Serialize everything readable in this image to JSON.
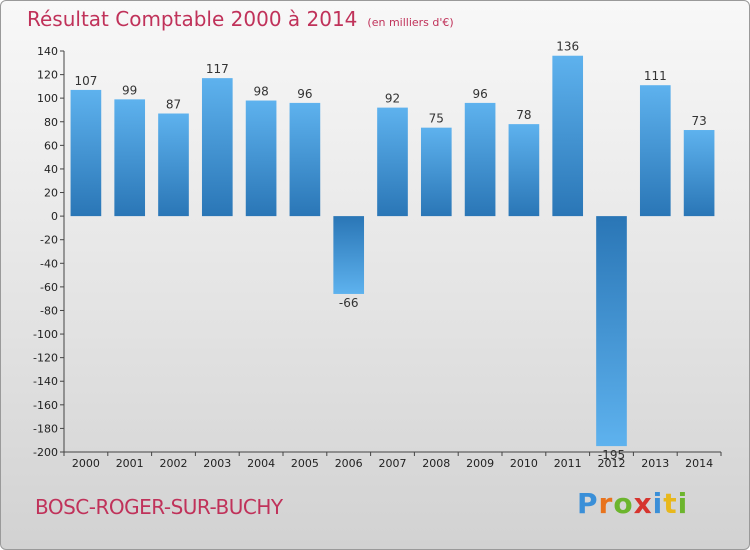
{
  "header": {
    "title": "Résultat Comptable 2000 à 2014",
    "subtitle": "(en milliers d'€)"
  },
  "footer": {
    "municipality": "BOSC-ROGER-SUR-BUCHY",
    "brand": "Proxiti"
  },
  "brand_letters": [
    {
      "ch": "P",
      "color": "#3a8fd8"
    },
    {
      "ch": "r",
      "color": "#e8731c"
    },
    {
      "ch": "o",
      "color": "#6cb52d"
    },
    {
      "ch": "x",
      "color": "#d6342e"
    },
    {
      "ch": "i",
      "color": "#3a8fd8"
    },
    {
      "ch": "t",
      "color": "#e8b81c"
    },
    {
      "ch": "i",
      "color": "#6cb52d"
    }
  ],
  "colors": {
    "title": "#c0325a",
    "bar_light": "#5aaeea",
    "bar_dark": "#2a78b8"
  },
  "chart_data": {
    "type": "bar",
    "categories": [
      "2000",
      "2001",
      "2002",
      "2003",
      "2004",
      "2005",
      "2006",
      "2007",
      "2008",
      "2009",
      "2010",
      "2011",
      "2012",
      "2013",
      "2014"
    ],
    "values": [
      107,
      99,
      87,
      117,
      98,
      96,
      -66,
      92,
      75,
      96,
      78,
      136,
      -195,
      111,
      73
    ],
    "ylim": [
      -200,
      140
    ],
    "yticks": [
      140,
      120,
      100,
      80,
      60,
      40,
      20,
      0,
      -20,
      -40,
      -60,
      -80,
      -100,
      -120,
      -140,
      -160,
      -180,
      -200
    ],
    "grid": false,
    "legend": "none"
  }
}
